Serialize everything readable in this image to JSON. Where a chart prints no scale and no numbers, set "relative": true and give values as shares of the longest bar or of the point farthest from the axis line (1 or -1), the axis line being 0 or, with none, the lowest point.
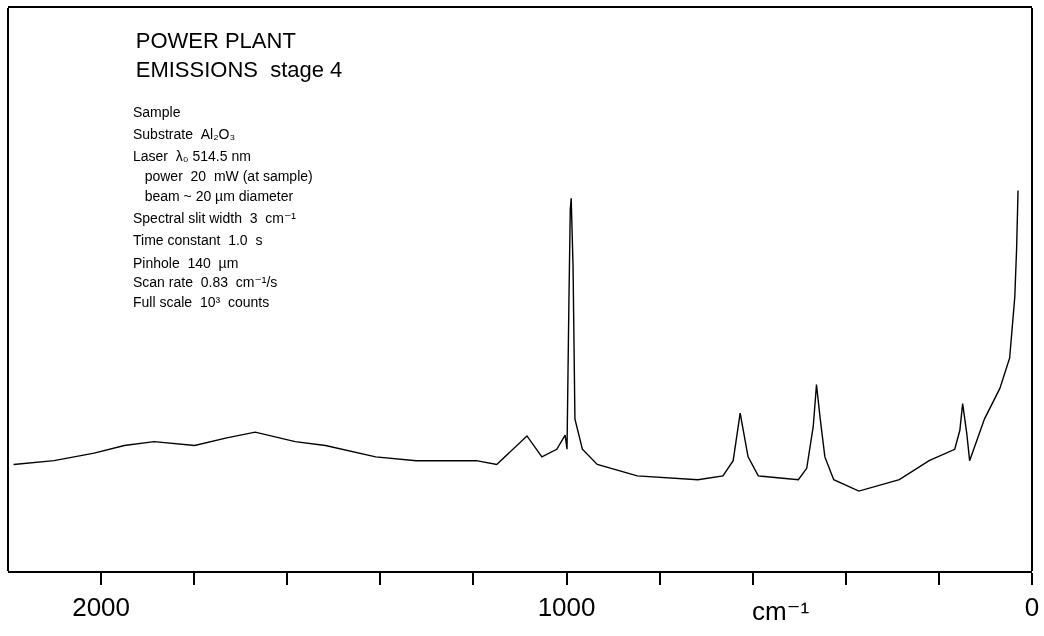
{
  "chart_data": {
    "type": "line",
    "relative": true,
    "title": "POWER PLANT\nEMISSIONS  stage 4",
    "xlabel": "cm⁻¹",
    "annotations": [
      "Sample",
      "Substrate  Al₂O₃",
      "Laser  λ₀ 514.5 nm",
      "   power  20  mW (at sample)",
      "   beam ~ 20 µm diameter",
      "Spectral slit width  3  cm⁻¹",
      "Time constant  1.0  s",
      "Pinhole  140  µm",
      "Scan rate  0.83  cm⁻¹/s",
      "Full scale  10³  counts"
    ],
    "xlim": [
      2200,
      0
    ],
    "xticks": [
      2000,
      {
        "value": 1800,
        "label": null
      },
      {
        "value": 1600,
        "label": null
      },
      {
        "value": 1400,
        "label": null
      },
      {
        "value": 1200,
        "label": null
      },
      1000,
      {
        "value": 800,
        "label": null
      },
      {
        "value": 600,
        "label": null
      },
      {
        "value": 400,
        "label": null
      },
      {
        "value": 200,
        "label": null
      },
      0
    ],
    "grid": false,
    "marker": "none",
    "line_style": "solid",
    "series": [
      {
        "color": "#000000",
        "x": [
          2188,
          2101,
          2015,
          1950,
          1886,
          1799,
          1730,
          1669,
          1583,
          1518,
          1410,
          1323,
          1194,
          1150,
          1085,
          1053,
          1021,
          1003,
          999,
          995,
          992,
          990,
          986,
          982,
          966,
          934,
          848,
          718,
          664,
          642,
          627,
          610,
          588,
          502,
          484,
          470,
          463,
          455,
          445,
          426,
          372,
          285,
          221,
          166,
          155,
          149,
          140,
          134,
          102,
          69,
          48,
          37,
          33,
          30
        ],
        "values": [
          0.28,
          0.29,
          0.31,
          0.33,
          0.34,
          0.33,
          0.35,
          0.365,
          0.34,
          0.33,
          0.3,
          0.29,
          0.29,
          0.28,
          0.355,
          0.3,
          0.32,
          0.357,
          0.32,
          0.7,
          0.95,
          0.98,
          0.8,
          0.4,
          0.32,
          0.28,
          0.25,
          0.24,
          0.25,
          0.29,
          0.415,
          0.3,
          0.25,
          0.24,
          0.27,
          0.38,
          0.49,
          0.4,
          0.3,
          0.24,
          0.21,
          0.24,
          0.29,
          0.32,
          0.37,
          0.44,
          0.36,
          0.29,
          0.4,
          0.48,
          0.56,
          0.72,
          0.85,
          1.0
        ]
      }
    ]
  }
}
